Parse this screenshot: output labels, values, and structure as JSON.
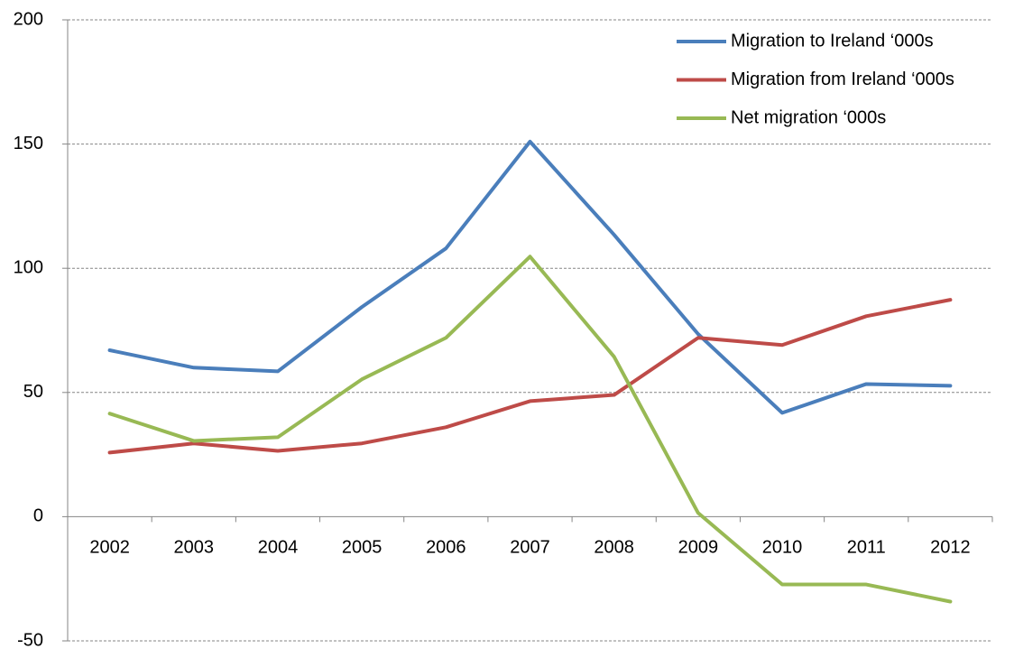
{
  "chart_data": {
    "type": "line",
    "categories": [
      "2002",
      "2003",
      "2004",
      "2005",
      "2006",
      "2007",
      "2008",
      "2009",
      "2010",
      "2011",
      "2012"
    ],
    "series": [
      {
        "name": "Migration to Ireland ‘000s",
        "color": "#4a7ebb",
        "values": [
          67,
          60,
          58.5,
          84.4,
          108,
          151,
          113.5,
          73.5,
          41.8,
          53.4,
          52.7
        ]
      },
      {
        "name": "Migration from Ireland ‘000s",
        "color": "#be4b48",
        "values": [
          25.8,
          29.5,
          26.5,
          29.5,
          36,
          46.5,
          49,
          72,
          69.1,
          80.7,
          87.3
        ]
      },
      {
        "name": "Net migration ‘000s",
        "color": "#98b954",
        "values": [
          41.5,
          30.5,
          32,
          55.3,
          72,
          104.7,
          64.4,
          1.5,
          -27.3,
          -27.3,
          -34.2
        ]
      }
    ],
    "ylim": [
      -50,
      200
    ],
    "yticks": [
      -50,
      0,
      50,
      100,
      150,
      200
    ],
    "grid": true,
    "legend": "top-right"
  }
}
